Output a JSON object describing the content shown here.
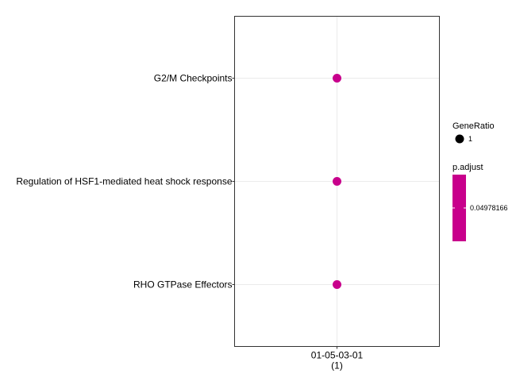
{
  "chart_data": {
    "type": "scatter",
    "categories_y": [
      "G2/M Checkpoints",
      "Regulation of HSF1-mediated heat shock response",
      "RHO GTPase Effectors"
    ],
    "categories_x": [
      {
        "label": "01-05-03-01",
        "sublabel": "(1)"
      }
    ],
    "points": [
      {
        "x": "01-05-03-01",
        "y": "G2/M Checkpoints",
        "gene_ratio": 1,
        "p_adjust": 0.04978166
      },
      {
        "x": "01-05-03-01",
        "y": "Regulation of HSF1-mediated heat shock response",
        "gene_ratio": 1,
        "p_adjust": 0.04978166
      },
      {
        "x": "01-05-03-01",
        "y": "RHO GTPase Effectors",
        "gene_ratio": 1,
        "p_adjust": 0.04978166
      }
    ],
    "point_color": "#c8008c",
    "grid": true,
    "legend": {
      "placement": "right",
      "size_title": "GeneRatio",
      "size_items": [
        {
          "label": "1",
          "value": 1
        }
      ],
      "color_title": "p.adjust",
      "color_ticks": [
        "0.04978166"
      ],
      "color": "#c8008c"
    }
  }
}
